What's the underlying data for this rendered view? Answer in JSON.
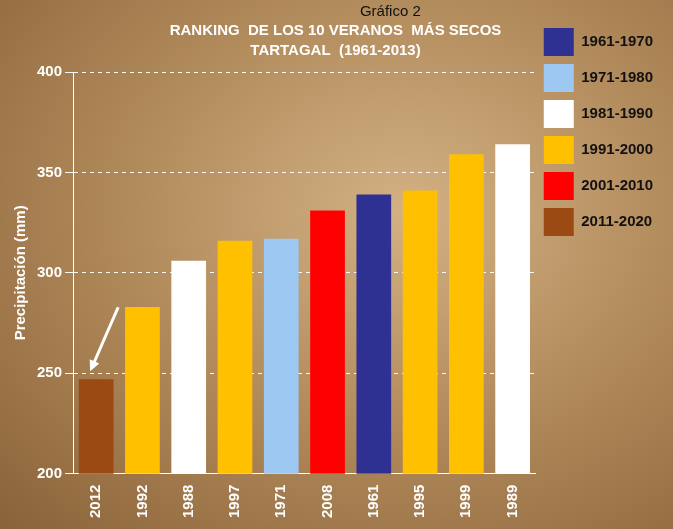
{
  "chart_data": {
    "type": "bar",
    "annotations": [
      "Gráfico 2"
    ],
    "title": "RANKING  DE LOS 10 VERANOS  MÁS SECOS",
    "subtitle": "TARTAGAL  (1961-2013)",
    "y_label": "Precipitación (mm)",
    "categories": [
      "2012",
      "1992",
      "1988",
      "1997",
      "1971",
      "2008",
      "1961",
      "1995",
      "1999",
      "1989"
    ],
    "series": [
      {
        "name": "1961-1970",
        "color": "#2e3192",
        "values": [
          null,
          null,
          null,
          null,
          null,
          null,
          339,
          null,
          null,
          null
        ]
      },
      {
        "name": "1971-1980",
        "color": "#9cc8f2",
        "values": [
          null,
          null,
          null,
          null,
          317,
          null,
          null,
          null,
          null,
          null
        ]
      },
      {
        "name": "1981-1990",
        "color": "#ffffff",
        "values": [
          null,
          null,
          306,
          null,
          null,
          null,
          null,
          null,
          null,
          364
        ]
      },
      {
        "name": "1991-2000",
        "color": "#ffc000",
        "values": [
          null,
          283,
          null,
          316,
          null,
          null,
          null,
          341,
          359,
          null
        ]
      },
      {
        "name": "2001-2010",
        "color": "#ff0000",
        "values": [
          null,
          null,
          null,
          null,
          null,
          331,
          null,
          null,
          null,
          null
        ]
      },
      {
        "name": "2011-2020",
        "color": "#9a4a12",
        "values": [
          247,
          null,
          null,
          null,
          null,
          null,
          null,
          null,
          null,
          null
        ]
      }
    ],
    "ylim": [
      200,
      400
    ],
    "yticks": [
      200,
      250,
      300,
      350,
      400
    ],
    "grid": true,
    "legend": "right",
    "data_labels": false
  }
}
